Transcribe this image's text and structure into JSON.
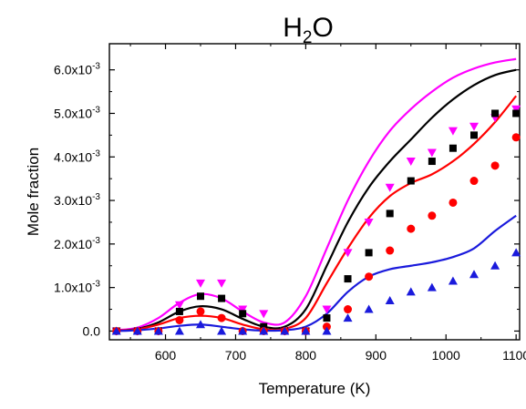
{
  "chart_data": {
    "type": "line",
    "title": {
      "main": "H",
      "sub": "2",
      "tail": "O"
    },
    "xlabel": "Temperature (K)",
    "ylabel": "Mole fraction",
    "xlim": [
      520,
      1105
    ],
    "ylim": [
      -0.0002,
      0.0066
    ],
    "xticks": [
      600,
      700,
      800,
      900,
      1000,
      1100
    ],
    "xtick_labels": [
      "600",
      "700",
      "800",
      "900",
      "1000",
      "1100"
    ],
    "yticks": [
      0,
      0.001,
      0.002,
      0.003,
      0.004,
      0.005,
      0.006
    ],
    "ytick_labels": [
      {
        "mantissa": "0.0",
        "exp": ""
      },
      {
        "mantissa": "1.0x10",
        "exp": "-3"
      },
      {
        "mantissa": "2.0x10",
        "exp": "-3"
      },
      {
        "mantissa": "3.0x10",
        "exp": "-3"
      },
      {
        "mantissa": "4.0x10",
        "exp": "-3"
      },
      {
        "mantissa": "5.0x10",
        "exp": "-3"
      },
      {
        "mantissa": "6.0x10",
        "exp": "-3"
      }
    ],
    "grid": false,
    "legend": "none",
    "series": [
      {
        "kind": "line",
        "color": "#ff00ff",
        "x": [
          530,
          560,
          590,
          620,
          650,
          680,
          710,
          740,
          770,
          800,
          830,
          860,
          890,
          920,
          950,
          980,
          1010,
          1040,
          1070,
          1100
        ],
        "y": [
          2e-05,
          8e-05,
          0.0003,
          0.00065,
          0.00085,
          0.00075,
          0.00045,
          0.0002,
          0.0002,
          0.0008,
          0.0019,
          0.003,
          0.0039,
          0.0046,
          0.0051,
          0.0055,
          0.00582,
          0.00603,
          0.00617,
          0.00625
        ]
      },
      {
        "kind": "line",
        "color": "#000000",
        "x": [
          530,
          560,
          590,
          620,
          650,
          680,
          710,
          740,
          770,
          800,
          830,
          860,
          890,
          920,
          950,
          980,
          1010,
          1040,
          1070,
          1100
        ],
        "y": [
          1e-05,
          5e-05,
          0.0002,
          0.00045,
          0.00057,
          0.0005,
          0.00028,
          0.0001,
          0.0001,
          0.0005,
          0.0015,
          0.0025,
          0.0033,
          0.0039,
          0.0044,
          0.0049,
          0.00532,
          0.00565,
          0.00588,
          0.006
        ]
      },
      {
        "kind": "line",
        "color": "#ff0000",
        "x": [
          530,
          560,
          590,
          620,
          650,
          680,
          710,
          740,
          770,
          800,
          830,
          860,
          890,
          920,
          950,
          980,
          1010,
          1040,
          1070,
          1100
        ],
        "y": [
          1e-05,
          4e-05,
          0.00015,
          0.0003,
          0.00035,
          0.0003,
          0.00015,
          4e-05,
          5e-05,
          0.0003,
          0.0011,
          0.0019,
          0.0026,
          0.0031,
          0.0034,
          0.0036,
          0.0039,
          0.0043,
          0.0048,
          0.0054
        ]
      },
      {
        "kind": "line",
        "color": "#1a1adc",
        "x": [
          530,
          560,
          590,
          620,
          650,
          680,
          710,
          740,
          770,
          800,
          830,
          860,
          890,
          920,
          950,
          980,
          1010,
          1040,
          1070,
          1100
        ],
        "y": [
          0.0,
          2e-05,
          6e-05,
          0.00012,
          0.00015,
          0.0001,
          4e-05,
          1e-05,
          2e-05,
          0.0001,
          0.0004,
          0.0009,
          0.00125,
          0.00142,
          0.0015,
          0.00158,
          0.0017,
          0.0019,
          0.0023,
          0.00265
        ]
      },
      {
        "kind": "marker",
        "marker": "triangle-down",
        "color": "#ff00ff",
        "x": [
          530,
          560,
          590,
          620,
          650,
          680,
          710,
          740,
          770,
          800,
          830,
          860,
          890,
          920,
          950,
          980,
          1010,
          1040,
          1070,
          1100
        ],
        "y": [
          0.0,
          0.0,
          0.0,
          0.0006,
          0.0011,
          0.0011,
          0.0005,
          0.0004,
          0.0,
          0.0,
          0.0005,
          0.0018,
          0.0025,
          0.0033,
          0.0039,
          0.0041,
          0.0046,
          0.0047,
          0.0049,
          0.0051
        ]
      },
      {
        "kind": "marker",
        "marker": "square",
        "color": "#000000",
        "x": [
          530,
          560,
          590,
          620,
          650,
          680,
          710,
          740,
          770,
          800,
          830,
          860,
          890,
          920,
          950,
          980,
          1010,
          1040,
          1070,
          1100
        ],
        "y": [
          0.0,
          0.0,
          0.0,
          0.00045,
          0.0008,
          0.00075,
          0.0004,
          0.0001,
          0.0,
          0.0,
          0.0003,
          0.0012,
          0.0018,
          0.0027,
          0.00345,
          0.0039,
          0.0042,
          0.0045,
          0.005,
          0.005
        ]
      },
      {
        "kind": "marker",
        "marker": "circle",
        "color": "#ff0000",
        "x": [
          530,
          560,
          590,
          620,
          650,
          680,
          710,
          740,
          770,
          800,
          830,
          860,
          890,
          920,
          950,
          980,
          1010,
          1040,
          1070,
          1100
        ],
        "y": [
          0.0,
          0.0,
          0.0,
          0.00025,
          0.00045,
          0.0003,
          0.0,
          0.0,
          0.0,
          0.0,
          0.0001,
          0.0005,
          0.00125,
          0.00185,
          0.00235,
          0.00265,
          0.00295,
          0.00345,
          0.0038,
          0.00445
        ]
      },
      {
        "kind": "marker",
        "marker": "triangle-up",
        "color": "#1a1adc",
        "x": [
          530,
          560,
          590,
          620,
          650,
          680,
          710,
          740,
          770,
          800,
          830,
          860,
          890,
          920,
          950,
          980,
          1010,
          1040,
          1070,
          1100
        ],
        "y": [
          0.0,
          0.0,
          0.0,
          0.0,
          0.00015,
          0.0,
          0.0,
          0.0,
          0.0,
          0.0,
          0.0,
          0.0003,
          0.0005,
          0.0007,
          0.0009,
          0.001,
          0.00115,
          0.0013,
          0.0015,
          0.0018
        ]
      }
    ]
  }
}
